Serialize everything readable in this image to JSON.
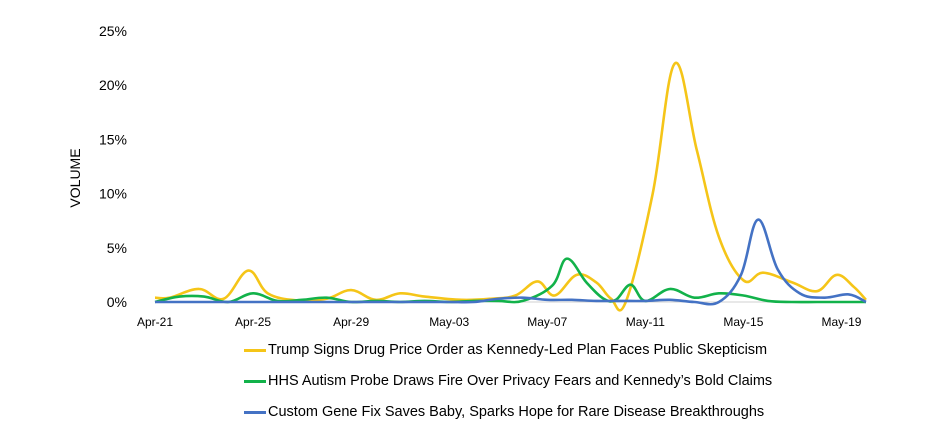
{
  "chart_data": {
    "type": "line",
    "ylabel": "VOLUME",
    "yticks": [
      "0%",
      "5%",
      "10%",
      "15%",
      "20%",
      "25%"
    ],
    "ylim": [
      0,
      25
    ],
    "xlim": [
      0,
      29
    ],
    "xticks": [
      {
        "label": "Apr-21",
        "index": 0
      },
      {
        "label": "Apr-25",
        "index": 4
      },
      {
        "label": "Apr-29",
        "index": 8
      },
      {
        "label": "May-03",
        "index": 12
      },
      {
        "label": "May-07",
        "index": 16
      },
      {
        "label": "May-11",
        "index": 20
      },
      {
        "label": "May-15",
        "index": 24
      },
      {
        "label": "May-19",
        "index": 28
      }
    ],
    "grid": false,
    "legend_position": "bottom",
    "series": [
      {
        "name": "Trump Signs Drug Price Order as Kennedy-Led Plan Faces Public Skepticism",
        "color": "#F5C518",
        "points": [
          [
            0,
            0.4
          ],
          [
            0.6,
            0.4
          ],
          [
            1.8,
            1.2
          ],
          [
            2.8,
            0.3
          ],
          [
            3.8,
            2.9
          ],
          [
            4.6,
            0.8
          ],
          [
            5.8,
            0.15
          ],
          [
            7,
            0.3
          ],
          [
            8,
            1.1
          ],
          [
            9,
            0.2
          ],
          [
            10,
            0.8
          ],
          [
            11,
            0.5
          ],
          [
            12.5,
            0.2
          ],
          [
            13.7,
            0.3
          ],
          [
            14.7,
            0.6
          ],
          [
            15.6,
            1.9
          ],
          [
            16.3,
            0.6
          ],
          [
            17.2,
            2.5
          ],
          [
            18,
            1.8
          ],
          [
            18.6,
            0.3
          ],
          [
            19.2,
            0
          ],
          [
            20.3,
            10
          ],
          [
            21.2,
            22
          ],
          [
            22.1,
            14
          ],
          [
            23,
            6
          ],
          [
            24,
            2
          ],
          [
            24.8,
            2.7
          ],
          [
            26,
            1.8
          ],
          [
            27,
            1
          ],
          [
            27.8,
            2.5
          ],
          [
            28.5,
            1.4
          ],
          [
            29,
            0.2
          ]
        ]
      },
      {
        "name": "HHS Autism Probe Draws Fire Over Privacy Fears and Kennedy’s Bold Claims",
        "color": "#12B24A",
        "points": [
          [
            0,
            0
          ],
          [
            1,
            0.5
          ],
          [
            2,
            0.5
          ],
          [
            3,
            0
          ],
          [
            4,
            0.8
          ],
          [
            5,
            0.1
          ],
          [
            6,
            0.2
          ],
          [
            7,
            0.4
          ],
          [
            8,
            0
          ],
          [
            9,
            0.1
          ],
          [
            10,
            0
          ],
          [
            11,
            0.1
          ],
          [
            12,
            0
          ],
          [
            13,
            0.1
          ],
          [
            14,
            0.1
          ],
          [
            15,
            0.1
          ],
          [
            16.2,
            1.5
          ],
          [
            16.8,
            4
          ],
          [
            17.6,
            1.8
          ],
          [
            18.3,
            0.3
          ],
          [
            18.8,
            0.2
          ],
          [
            19.4,
            1.6
          ],
          [
            20,
            0.1
          ],
          [
            21,
            1.2
          ],
          [
            22,
            0.4
          ],
          [
            23,
            0.8
          ],
          [
            24,
            0.6
          ],
          [
            25,
            0.1
          ],
          [
            26,
            0
          ],
          [
            27,
            0
          ],
          [
            28,
            0
          ],
          [
            29,
            0
          ]
        ]
      },
      {
        "name": "Custom Gene Fix Saves Baby, Sparks Hope for Rare Disease Breakthroughs",
        "color": "#4472C4",
        "points": [
          [
            0,
            0
          ],
          [
            1,
            0
          ],
          [
            2,
            0
          ],
          [
            3,
            0
          ],
          [
            4,
            0
          ],
          [
            5,
            0
          ],
          [
            6,
            0
          ],
          [
            7,
            0
          ],
          [
            8,
            0
          ],
          [
            9,
            0
          ],
          [
            10,
            0
          ],
          [
            11,
            0
          ],
          [
            12,
            0
          ],
          [
            13,
            0
          ],
          [
            14,
            0.3
          ],
          [
            15,
            0.4
          ],
          [
            16,
            0.2
          ],
          [
            17,
            0.2
          ],
          [
            18,
            0.1
          ],
          [
            19,
            0.1
          ],
          [
            20,
            0.1
          ],
          [
            21,
            0.2
          ],
          [
            22,
            0
          ],
          [
            23,
            0
          ],
          [
            23.9,
            2.5
          ],
          [
            24.6,
            7.6
          ],
          [
            25.4,
            3
          ],
          [
            26.3,
            0.8
          ],
          [
            27.3,
            0.4
          ],
          [
            28.3,
            0.7
          ],
          [
            29,
            0
          ]
        ]
      }
    ]
  }
}
